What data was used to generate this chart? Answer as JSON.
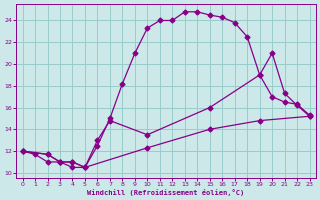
{
  "xlabel": "Windchill (Refroidissement éolien,°C)",
  "background_color": "#cce8e8",
  "grid_color": "#99cccc",
  "line_color": "#880088",
  "xlim": [
    -0.5,
    23.5
  ],
  "ylim": [
    9.5,
    25.5
  ],
  "xticks": [
    0,
    1,
    2,
    3,
    4,
    5,
    6,
    7,
    8,
    9,
    10,
    11,
    12,
    13,
    14,
    15,
    16,
    17,
    18,
    19,
    20,
    21,
    22,
    23
  ],
  "yticks": [
    10,
    12,
    14,
    16,
    18,
    20,
    22,
    24
  ],
  "series1_x": [
    0,
    1,
    2,
    3,
    4,
    5,
    6,
    7,
    8,
    9,
    10,
    11,
    12,
    13,
    14,
    15,
    16,
    17,
    18,
    19,
    20,
    21,
    22,
    23
  ],
  "series1_y": [
    12.0,
    11.7,
    11.0,
    11.0,
    10.5,
    10.5,
    12.5,
    15.0,
    18.2,
    21.0,
    23.3,
    24.0,
    24.0,
    24.8,
    24.8,
    24.5,
    24.3,
    23.8,
    22.5,
    19.0,
    21.0,
    17.3,
    16.2,
    15.2
  ],
  "series2_x": [
    0,
    2,
    3,
    4,
    5,
    6,
    7,
    10,
    15,
    19,
    20,
    21,
    22,
    23
  ],
  "series2_y": [
    12.0,
    11.7,
    11.0,
    11.0,
    10.5,
    13.0,
    14.8,
    13.5,
    16.0,
    19.0,
    17.0,
    16.5,
    16.3,
    15.3
  ],
  "series3_x": [
    0,
    2,
    3,
    4,
    5,
    10,
    15,
    19,
    23
  ],
  "series3_y": [
    12.0,
    11.7,
    11.0,
    11.0,
    10.5,
    12.3,
    14.0,
    14.8,
    15.2
  ]
}
